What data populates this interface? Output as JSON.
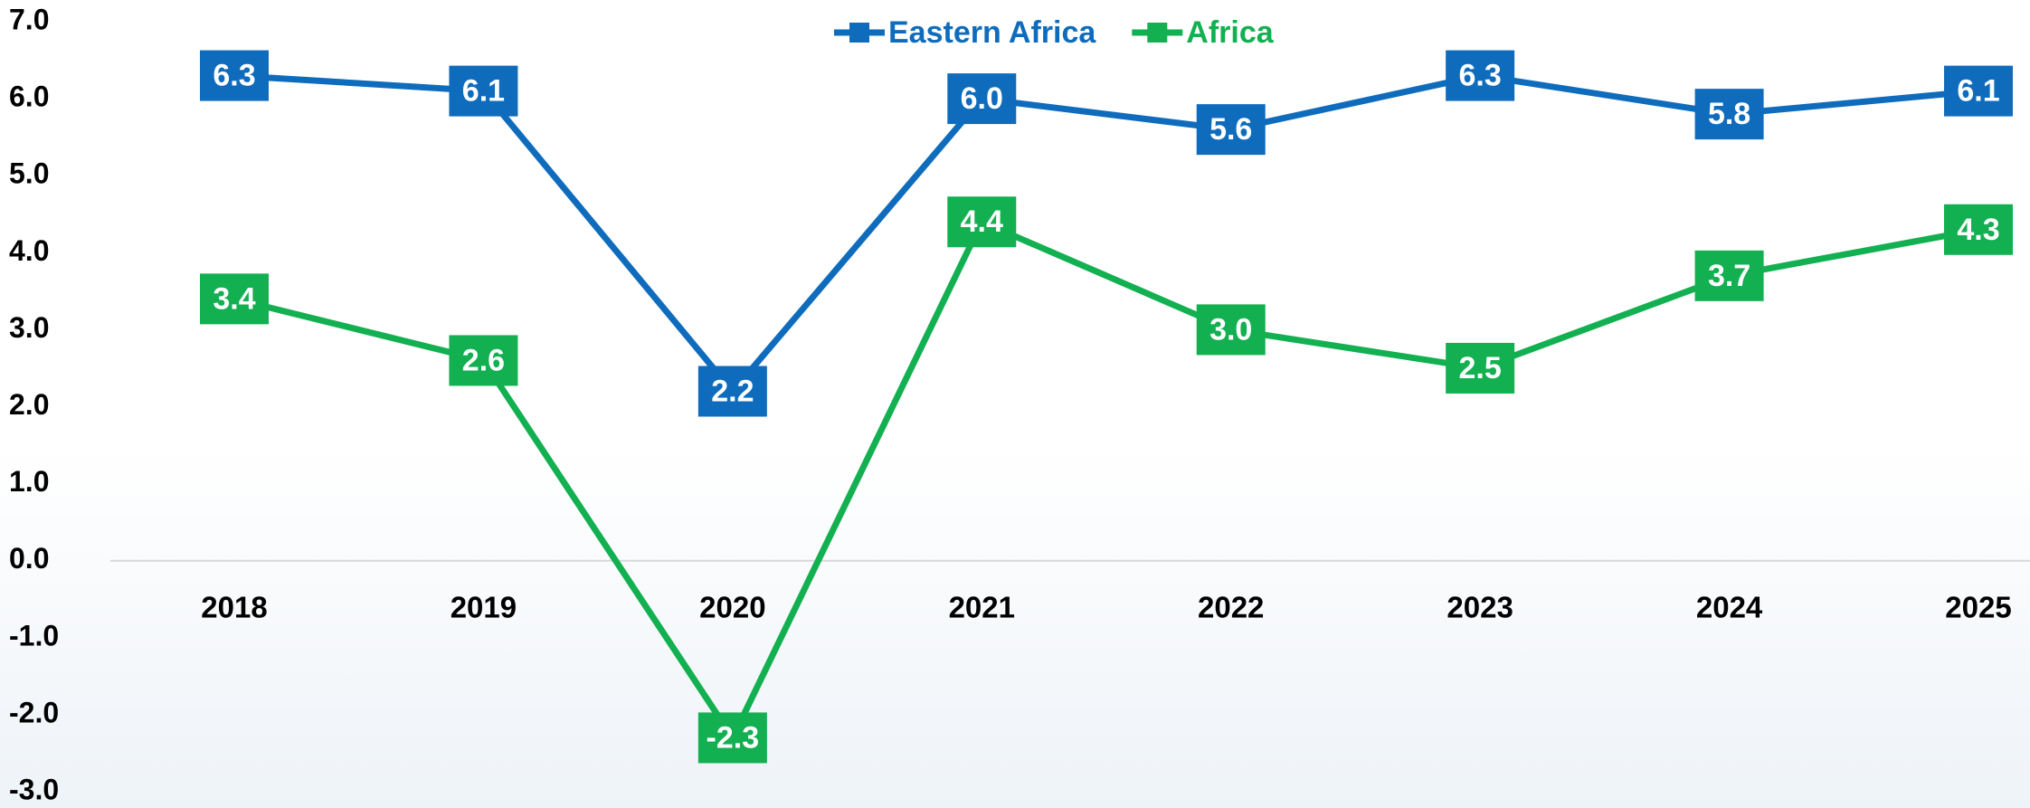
{
  "chart_data": {
    "type": "line",
    "categories": [
      "2018",
      "2019",
      "2020",
      "2021",
      "2022",
      "2023",
      "2024",
      "2025"
    ],
    "series": [
      {
        "name": "Eastern Africa",
        "color": "#0f6cbd",
        "values": [
          6.3,
          6.1,
          2.2,
          6.0,
          5.6,
          6.3,
          5.8,
          6.1
        ],
        "value_labels": [
          "6.3",
          "6.1",
          "2.2",
          "6.0",
          "5.6",
          "6.3",
          "5.8",
          "6.1"
        ]
      },
      {
        "name": "Africa",
        "color": "#12b050",
        "values": [
          3.4,
          2.6,
          -2.3,
          4.4,
          3.0,
          2.5,
          3.7,
          4.3
        ],
        "value_labels": [
          "3.4",
          "2.6",
          "-2.3",
          "4.4",
          "3.0",
          "2.5",
          "3.7",
          "4.3"
        ]
      }
    ],
    "ylim": [
      -3,
      7
    ],
    "yticks": [
      {
        "value": -3,
        "label": "-3.0"
      },
      {
        "value": -2,
        "label": "-2.0"
      },
      {
        "value": -1,
        "label": "-1.0"
      },
      {
        "value": 0,
        "label": "0.0"
      },
      {
        "value": 1,
        "label": "1.0"
      },
      {
        "value": 2,
        "label": "2.0"
      },
      {
        "value": 3,
        "label": "3.0"
      },
      {
        "value": 4,
        "label": "4.0"
      },
      {
        "value": 5,
        "label": "5.0"
      },
      {
        "value": 6,
        "label": "6.0"
      },
      {
        "value": 7,
        "label": "7.0"
      }
    ],
    "legend": "top",
    "grid": false
  }
}
